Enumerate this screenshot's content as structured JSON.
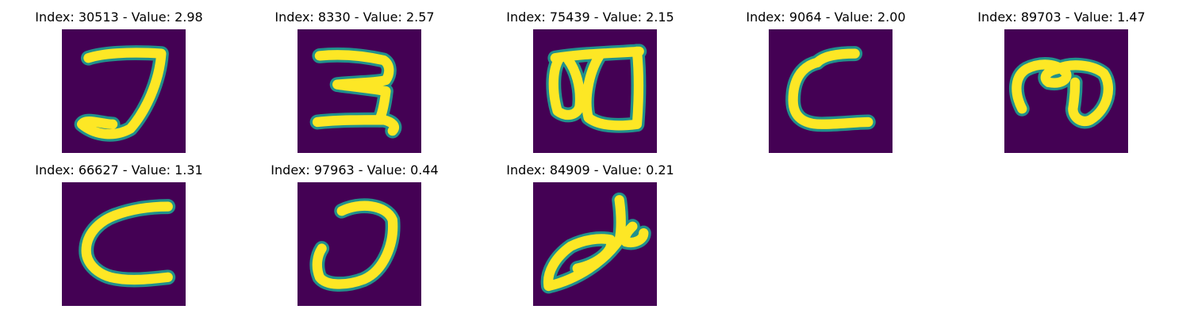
{
  "colors": {
    "background": "#440154",
    "stroke_edge": "#21918c",
    "stroke_core": "#fde725"
  },
  "panels": [
    {
      "title": "Index: 30513 - Value: 2.98"
    },
    {
      "title": "Index: 8330 - Value: 2.57"
    },
    {
      "title": "Index: 75439 - Value: 2.15"
    },
    {
      "title": "Index: 9064 - Value: 2.00"
    },
    {
      "title": "Index: 89703 - Value: 1.47"
    },
    {
      "title": "Index: 66627 - Value: 1.31"
    },
    {
      "title": "Index: 97963 - Value: 0.44"
    },
    {
      "title": "Index: 84909 - Value: 0.21"
    }
  ]
}
